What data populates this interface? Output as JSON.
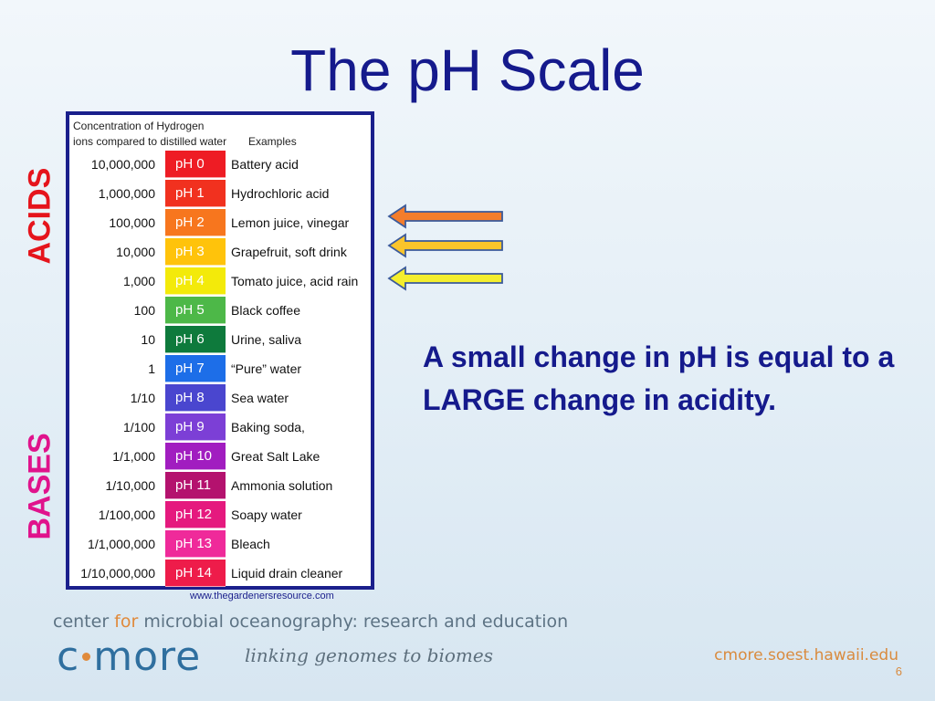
{
  "slide": {
    "title": "The pH Scale",
    "acids_label": "ACIDS",
    "bases_label": "BASES",
    "statement": "A small change in pH is equal to a LARGE change in acidity.",
    "slide_number": "6"
  },
  "chart": {
    "header_line1": "Concentration of Hydrogen",
    "header_line2": "ions compared to distilled water",
    "header_examples": "Examples",
    "credit": "www.thegardenersresource.com",
    "rows": [
      {
        "concentration": "10,000,000",
        "ph": "pH 0",
        "example": "Battery acid",
        "color": "#ee1c24"
      },
      {
        "concentration": "1,000,000",
        "ph": "pH 1",
        "example": "Hydrochloric acid",
        "color": "#f1311f"
      },
      {
        "concentration": "100,000",
        "ph": "pH 2",
        "example": "Lemon juice, vinegar",
        "color": "#f7761e"
      },
      {
        "concentration": "10,000",
        "ph": "pH 3",
        "example": "Grapefruit, soft drink",
        "color": "#ffc30b"
      },
      {
        "concentration": "1,000",
        "ph": "pH 4",
        "example": "Tomato juice, acid rain",
        "color": "#f3ea0a"
      },
      {
        "concentration": "100",
        "ph": "pH 5",
        "example": "Black coffee",
        "color": "#4db848"
      },
      {
        "concentration": "10",
        "ph": "pH 6",
        "example": "Urine, saliva",
        "color": "#0e7a3c"
      },
      {
        "concentration": "1",
        "ph": "pH 7",
        "example": "“Pure” water",
        "color": "#1d6ee8"
      },
      {
        "concentration": "1/10",
        "ph": "pH 8",
        "example": "Sea water",
        "color": "#4a46cf"
      },
      {
        "concentration": "1/100",
        "ph": "pH 9",
        "example": "Baking soda,",
        "color": "#7c3fd6"
      },
      {
        "concentration": "1/1,000",
        "ph": "pH 10",
        "example": "Great Salt Lake",
        "color": "#a11dc0"
      },
      {
        "concentration": "1/10,000",
        "ph": "pH 11",
        "example": "Ammonia solution",
        "color": "#b4126e"
      },
      {
        "concentration": "1/100,000",
        "ph": "pH 12",
        "example": "Soapy water",
        "color": "#e5197e"
      },
      {
        "concentration": "1/1,000,000",
        "ph": "pH 13",
        "example": "Bleach",
        "color": "#ef2a9a"
      },
      {
        "concentration": "1/10,000,000",
        "ph": "pH 14",
        "example": "Liquid drain cleaner",
        "color": "#ee1c4a"
      }
    ]
  },
  "arrows": [
    {
      "color": "#f47d2c"
    },
    {
      "color": "#fbc52b"
    },
    {
      "color": "#f4ee2e"
    }
  ],
  "footer": {
    "org_pre": "center ",
    "org_for": "for",
    "org_post": " microbial oceanography: research and education",
    "logo_c": "c",
    "logo_rest": "more",
    "tagline": "linking genomes to biomes",
    "url": "cmore.soest.hawaii.edu"
  }
}
